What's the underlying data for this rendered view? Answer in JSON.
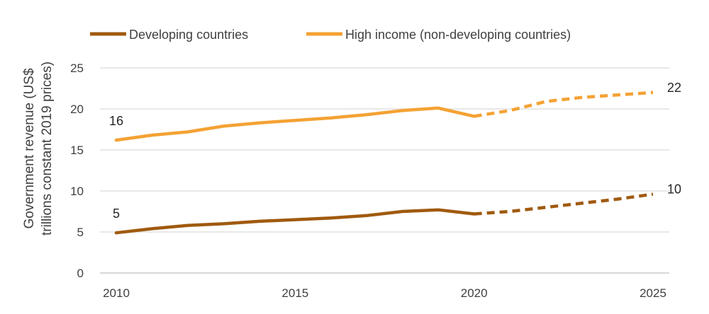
{
  "chart_data": {
    "type": "line",
    "title": "",
    "ylabel_lines": [
      "Government revenue (US$",
      "trillions constant 2019 prices)"
    ],
    "xlabel": "",
    "ylim": [
      0,
      25
    ],
    "yticks": [
      0,
      5,
      10,
      15,
      20,
      25
    ],
    "xlim": [
      2010,
      2025
    ],
    "xticks": [
      2010,
      2015,
      2020,
      2025
    ],
    "grid": true,
    "legend_position": "top",
    "projection_start": 2020,
    "series": [
      {
        "name": "Developing countries",
        "color": "#a05a0f",
        "x": [
          2010,
          2011,
          2012,
          2013,
          2014,
          2015,
          2016,
          2017,
          2018,
          2019,
          2020,
          2021,
          2022,
          2023,
          2024,
          2025
        ],
        "y": [
          4.9,
          5.4,
          5.8,
          6.0,
          6.3,
          6.5,
          6.7,
          7.0,
          7.5,
          7.7,
          7.2,
          7.5,
          8.0,
          8.5,
          9.0,
          9.6
        ],
        "labels": [
          {
            "x": 2010,
            "text": "5"
          },
          {
            "x": 2025,
            "text": "10"
          }
        ]
      },
      {
        "name": "High income (non-developing countries)",
        "color": "#f4a234",
        "x": [
          2010,
          2011,
          2012,
          2013,
          2014,
          2015,
          2016,
          2017,
          2018,
          2019,
          2020,
          2021,
          2022,
          2023,
          2024,
          2025
        ],
        "y": [
          16.2,
          16.8,
          17.2,
          17.9,
          18.3,
          18.6,
          18.9,
          19.3,
          19.8,
          20.1,
          19.1,
          19.8,
          20.9,
          21.4,
          21.7,
          22.0
        ],
        "labels": [
          {
            "x": 2010,
            "text": "16"
          },
          {
            "x": 2025,
            "text": "22"
          }
        ]
      }
    ]
  }
}
